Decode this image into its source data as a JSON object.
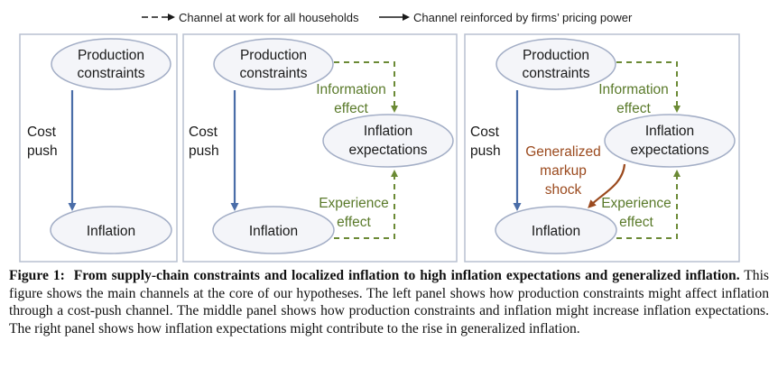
{
  "legend": {
    "dashed_label": "Channel at work for all households",
    "solid_label": "Channel reinforced by firms’ pricing power"
  },
  "panels": [
    {
      "production": [
        "Production",
        "constraints"
      ],
      "cost_push": [
        "Cost",
        "push"
      ],
      "inflation": "Inflation"
    },
    {
      "production": [
        "Production",
        "constraints"
      ],
      "cost_push": [
        "Cost",
        "push"
      ],
      "inflation": "Inflation",
      "expectations": [
        "Inflation",
        "expectations"
      ],
      "information_effect": [
        "Information",
        "effect"
      ],
      "experience_effect": [
        "Experience",
        "effect"
      ]
    },
    {
      "production": [
        "Production",
        "constraints"
      ],
      "cost_push": [
        "Cost",
        "push"
      ],
      "inflation": "Inflation",
      "expectations": [
        "Inflation",
        "expectations"
      ],
      "information_effect": [
        "Information",
        "effect"
      ],
      "experience_effect": [
        "Experience",
        "effect"
      ],
      "markup_shock": [
        "Generalized",
        "markup",
        "shock"
      ]
    }
  ],
  "caption": {
    "label": "Figure 1:",
    "title": "From supply-chain constraints and localized inflation to high inflation expectations and generalized inflation.",
    "body": "This figure shows the main channels at the core of our hypotheses. The left panel shows how production constraints might affect inflation through a cost-push channel. The middle panel shows how production constraints and inflation might increase inflation expectations. The right panel shows how inflation expectations might contribute to the rise in generalized inflation."
  },
  "colors": {
    "box_border": "#b8c0d0",
    "ellipse_stroke": "#a3aec6",
    "ellipse_fill": "#f4f5f9",
    "blue_arrow": "#4a6da8",
    "green_dash": "#6b8a35",
    "brown_arrow": "#9b4a1e"
  }
}
